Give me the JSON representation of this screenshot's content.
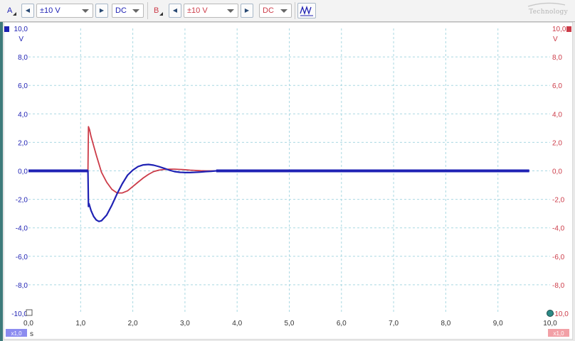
{
  "toolbar": {
    "channel_a": {
      "label": "A",
      "range": "±10 V",
      "coupling": "DC"
    },
    "channel_b": {
      "label": "B",
      "range": "±10 V",
      "coupling": "DC"
    },
    "logo_text": "Technology"
  },
  "colors": {
    "channel_a": "#1f22b4",
    "channel_b": "#cc3b48",
    "grid": "#a9d8e2",
    "plot_bg": "#ffffff"
  },
  "scale_badges": {
    "left": "x1,0",
    "right": "x1,0"
  },
  "chart_data": {
    "type": "line",
    "xlabel": "s",
    "ylabel_left": "V",
    "ylabel_right": "V",
    "xlim": [
      0,
      10
    ],
    "ylim": [
      -10,
      10
    ],
    "x_ticks": [
      "0,0",
      "1,0",
      "2,0",
      "3,0",
      "4,0",
      "5,0",
      "6,0",
      "7,0",
      "8,0",
      "9,0",
      "10,0"
    ],
    "y_ticks": [
      "10,0",
      "8,0",
      "6,0",
      "4,0",
      "2,0",
      "0,0",
      "-2,0",
      "-4,0",
      "-6,0",
      "-8,0",
      "-10,0"
    ],
    "grid": true,
    "series": [
      {
        "channel": "A",
        "x": [
          0,
          1.14,
          1.15,
          1.16,
          1.2,
          1.25,
          1.3,
          1.35,
          1.4,
          1.5,
          1.6,
          1.7,
          1.8,
          1.9,
          2.0,
          2.1,
          2.2,
          2.3,
          2.4,
          2.5,
          2.6,
          2.7,
          2.8,
          2.9,
          3.0,
          3.1,
          3.2,
          3.3,
          3.4,
          3.5,
          3.6,
          9.6
        ],
        "y": [
          0,
          0,
          -2.5,
          -2.3,
          -2.8,
          -3.2,
          -3.45,
          -3.55,
          -3.5,
          -3.1,
          -2.4,
          -1.6,
          -0.9,
          -0.3,
          0.05,
          0.3,
          0.42,
          0.45,
          0.4,
          0.3,
          0.18,
          0.05,
          -0.05,
          -0.1,
          -0.12,
          -0.12,
          -0.1,
          -0.08,
          -0.05,
          -0.03,
          0,
          0
        ]
      },
      {
        "channel": "B",
        "x": [
          1.14,
          1.15,
          1.17,
          1.2,
          1.3,
          1.4,
          1.5,
          1.6,
          1.7,
          1.8,
          1.9,
          2.0,
          2.1,
          2.2,
          2.3,
          2.4,
          2.5,
          2.6,
          2.7,
          2.8,
          2.9,
          3.0,
          3.1,
          3.2,
          3.3,
          3.4,
          3.5,
          3.6
        ],
        "y": [
          0,
          3.1,
          2.9,
          2.4,
          1.1,
          -0.1,
          -0.8,
          -1.3,
          -1.55,
          -1.55,
          -1.4,
          -1.1,
          -0.8,
          -0.5,
          -0.25,
          -0.05,
          0.05,
          0.1,
          0.12,
          0.12,
          0.1,
          0.08,
          0.05,
          0.03,
          0.01,
          0,
          0,
          0
        ]
      }
    ]
  }
}
